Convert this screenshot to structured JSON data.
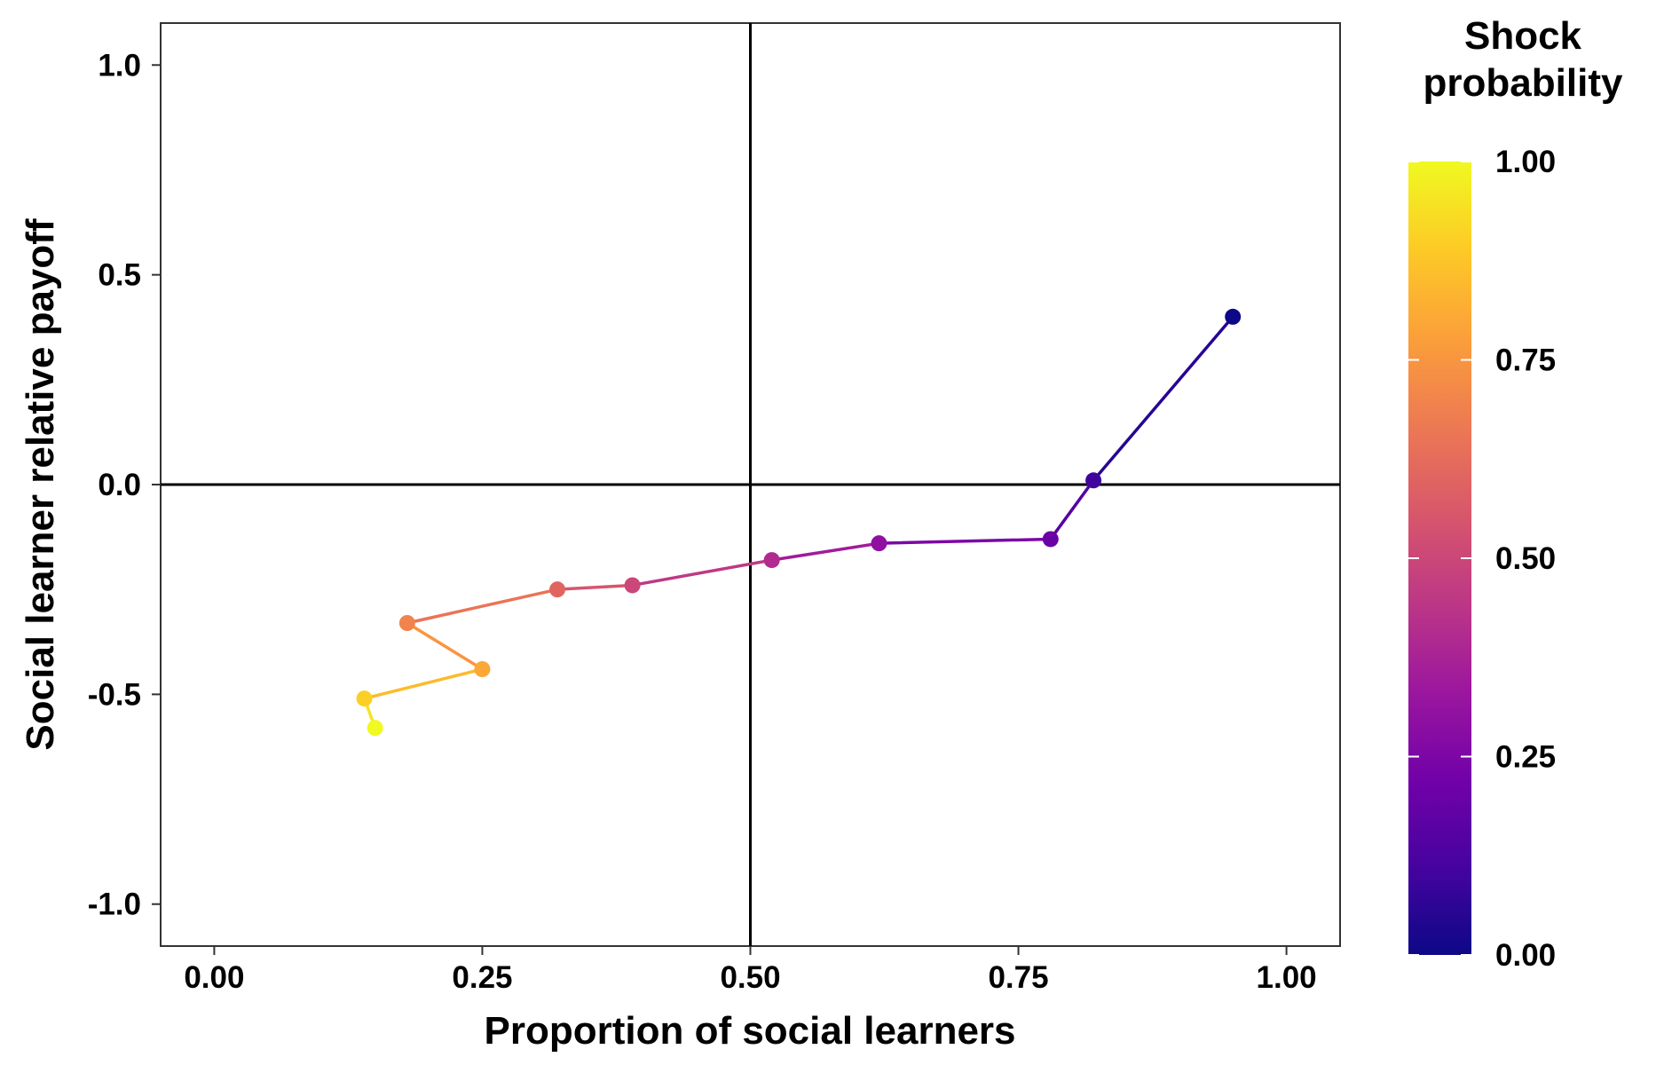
{
  "chart_data": {
    "type": "line",
    "title": "",
    "xlabel": "Proportion of social learners",
    "ylabel": "Social learner relative payoff",
    "xlim": [
      -0.05,
      1.05
    ],
    "ylim": [
      -1.1,
      1.1
    ],
    "x_ticks": [
      0.0,
      0.25,
      0.5,
      0.75,
      1.0
    ],
    "x_tick_labels": [
      "0.00",
      "0.25",
      "0.50",
      "0.75",
      "1.00"
    ],
    "y_ticks": [
      -1.0,
      -0.5,
      0.0,
      0.5,
      1.0
    ],
    "y_tick_labels": [
      "-1.0",
      "-0.5",
      "0.0",
      "0.5",
      "1.0"
    ],
    "reference_lines": {
      "x": 0.5,
      "y": 0.0
    },
    "grid": false,
    "color_scale": {
      "title_lines": [
        "Shock",
        "probability"
      ],
      "palette": "plasma",
      "range": [
        0.0,
        1.0
      ],
      "ticks": [
        0.0,
        0.25,
        0.5,
        0.75,
        1.0
      ],
      "tick_labels": [
        "0.00",
        "0.25",
        "0.50",
        "0.75",
        "1.00"
      ],
      "placement": "right",
      "stops": [
        "#0d0887",
        "#46039f",
        "#7201a8",
        "#9c179e",
        "#bd3786",
        "#d8576b",
        "#ed7953",
        "#fb9f3a",
        "#fdca26",
        "#f0f921"
      ]
    },
    "points": [
      {
        "x": 0.95,
        "y": 0.4,
        "shock": 0.0
      },
      {
        "x": 0.82,
        "y": 0.01,
        "shock": 0.1
      },
      {
        "x": 0.78,
        "y": -0.13,
        "shock": 0.2
      },
      {
        "x": 0.62,
        "y": -0.14,
        "shock": 0.3
      },
      {
        "x": 0.52,
        "y": -0.18,
        "shock": 0.4
      },
      {
        "x": 0.39,
        "y": -0.24,
        "shock": 0.5
      },
      {
        "x": 0.32,
        "y": -0.25,
        "shock": 0.6
      },
      {
        "x": 0.18,
        "y": -0.33,
        "shock": 0.7
      },
      {
        "x": 0.25,
        "y": -0.44,
        "shock": 0.8
      },
      {
        "x": 0.14,
        "y": -0.51,
        "shock": 0.9
      },
      {
        "x": 0.15,
        "y": -0.58,
        "shock": 1.0
      }
    ]
  }
}
